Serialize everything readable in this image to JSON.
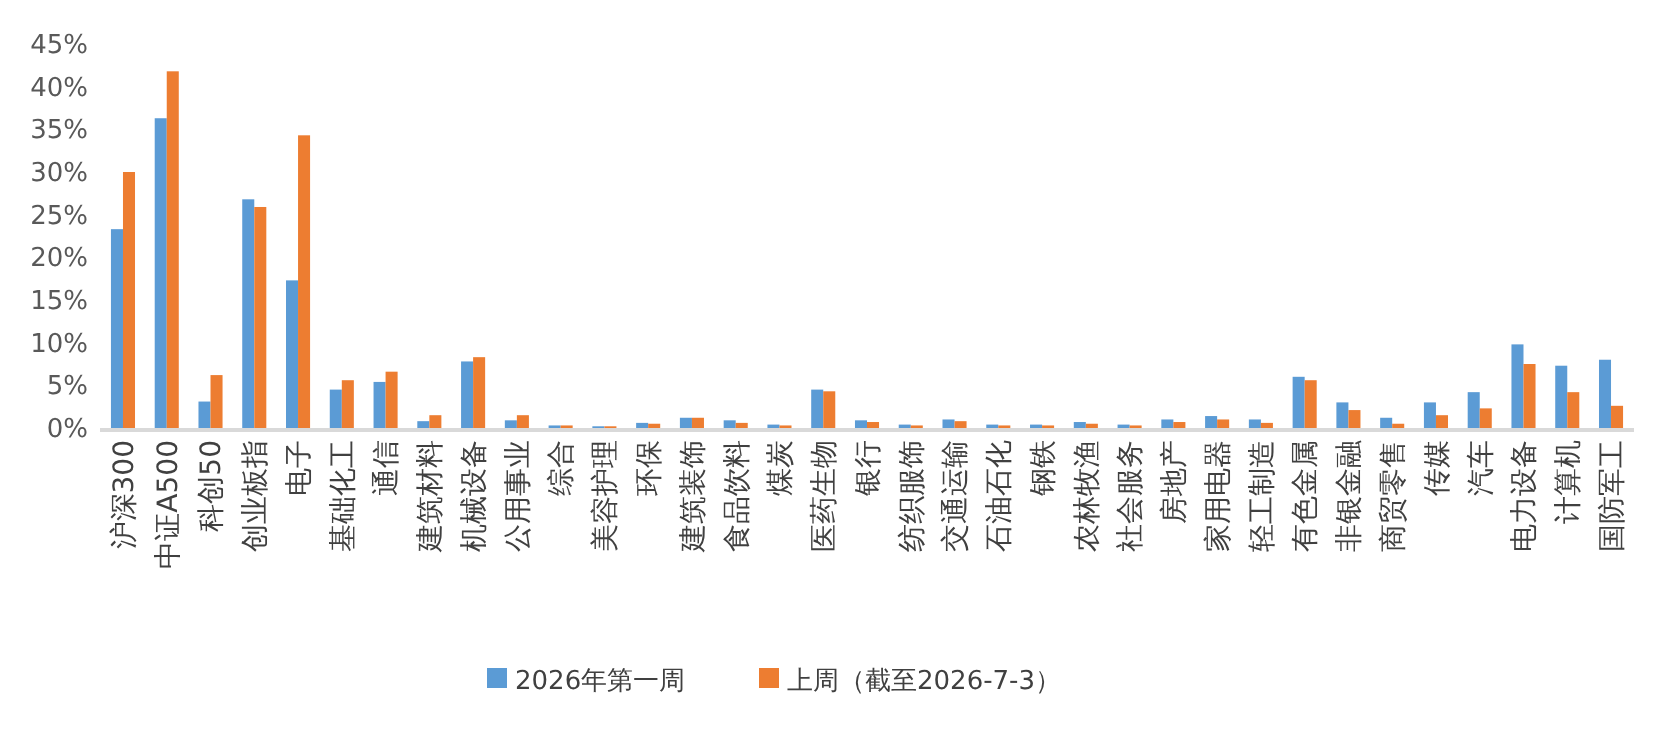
{
  "chart_data": {
    "type": "bar",
    "categories": [
      "沪深300",
      "中证A500",
      "科创50",
      "创业板指",
      "电子",
      "基础化工",
      "通信",
      "建筑材料",
      "机械设备",
      "公用事业",
      "综合",
      "美容护理",
      "环保",
      "建筑装饰",
      "食品饮料",
      "煤炭",
      "医药生物",
      "银行",
      "纺织服饰",
      "交通运输",
      "石油石化",
      "钢铁",
      "农林牧渔",
      "社会服务",
      "房地产",
      "家用电器",
      "轻工制造",
      "有色金属",
      "非银金融",
      "商贸零售",
      "传媒",
      "汽车",
      "电力设备",
      "计算机",
      "国防军工"
    ],
    "series": [
      {
        "name": "2026年第一周",
        "color": "#5b9bd5",
        "values": [
          23.3,
          36.3,
          3.1,
          26.8,
          17.3,
          4.5,
          5.4,
          0.8,
          7.8,
          0.9,
          0.3,
          0.2,
          0.6,
          1.2,
          0.9,
          0.4,
          4.5,
          0.9,
          0.4,
          1.0,
          0.4,
          0.4,
          0.7,
          0.4,
          1.0,
          1.4,
          1.0,
          6.0,
          3.0,
          1.2,
          3.0,
          4.2,
          9.8,
          7.3,
          8.0
        ]
      },
      {
        "name": "上周（截至2026-7-3）",
        "color": "#ed7d31",
        "values": [
          30.0,
          41.8,
          6.2,
          25.9,
          34.3,
          5.6,
          6.6,
          1.5,
          8.3,
          1.5,
          0.3,
          0.2,
          0.5,
          1.2,
          0.6,
          0.3,
          4.3,
          0.7,
          0.3,
          0.8,
          0.3,
          0.3,
          0.5,
          0.3,
          0.7,
          1.0,
          0.6,
          5.6,
          2.1,
          0.5,
          1.5,
          2.3,
          7.5,
          4.2,
          2.6
        ]
      }
    ],
    "ylim": [
      0,
      45
    ],
    "yticks": [
      {
        "value": 0,
        "label": "0%"
      },
      {
        "value": 5,
        "label": "5%"
      },
      {
        "value": 10,
        "label": "10%"
      },
      {
        "value": 15,
        "label": "15%"
      },
      {
        "value": 20,
        "label": "20%"
      },
      {
        "value": 25,
        "label": "25%"
      },
      {
        "value": 30,
        "label": "30%"
      },
      {
        "value": 35,
        "label": "35%"
      },
      {
        "value": 40,
        "label": "40%"
      },
      {
        "value": 45,
        "label": "45%"
      }
    ],
    "grid": false,
    "legend": "bottom"
  }
}
